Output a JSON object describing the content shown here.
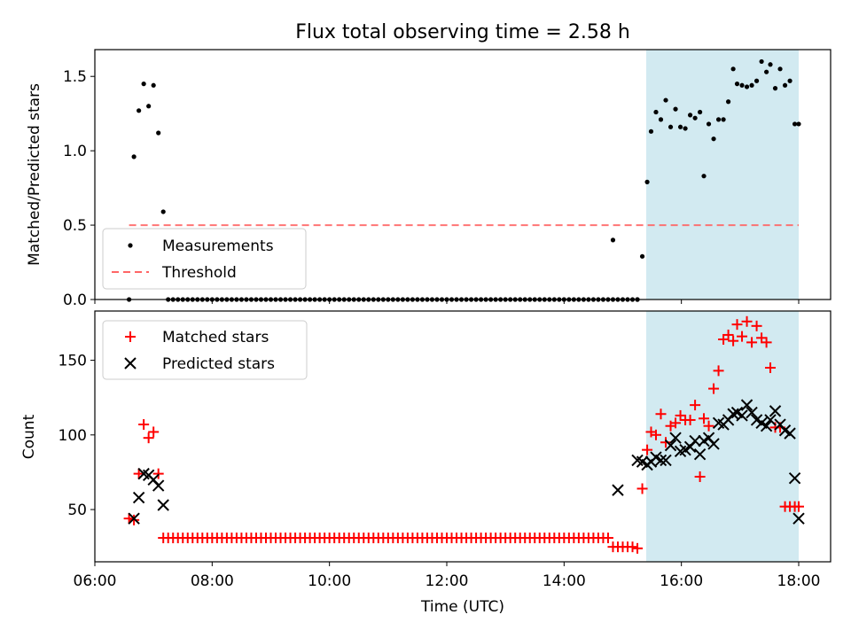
{
  "chart_data": [
    {
      "type": "scatter",
      "title": "Flux total observing time = 2.58 h",
      "ylabel": "Matched/Predicted stars",
      "xlabel": "",
      "xlim": [
        "06:00",
        "18:00"
      ],
      "ylim": [
        0,
        1.68
      ],
      "yticks": [
        "0.0",
        "0.5",
        "1.0",
        "1.5"
      ],
      "highlight_span": {
        "x": [
          "15:24",
          "18:00"
        ],
        "color": "#add8e6"
      },
      "threshold": {
        "name": "Threshold",
        "y": 0.5,
        "x": [
          "06:35",
          "18:00"
        ],
        "color": "#ff6666"
      },
      "series": [
        {
          "name": "Measurements",
          "color": "#000000",
          "marker": "dot",
          "x": [
            "06:35",
            "06:40",
            "06:45",
            "06:50",
            "06:55",
            "07:00",
            "07:05",
            "07:10",
            "15:15",
            "15:20",
            "15:25",
            "15:29",
            "15:34",
            "15:39",
            "15:44",
            "15:49",
            "15:54",
            "15:59",
            "16:04",
            "16:09",
            "16:14",
            "16:19",
            "16:23",
            "16:28",
            "16:33",
            "16:38",
            "16:43",
            "16:48",
            "16:53",
            "16:57",
            "17:02",
            "17:07",
            "17:12",
            "17:17",
            "17:22",
            "17:27",
            "17:31",
            "17:36",
            "17:41",
            "17:46",
            "17:51",
            "17:56",
            "18:00"
          ],
          "y": [
            0.0,
            0.96,
            1.27,
            1.45,
            1.3,
            1.44,
            1.12,
            0.59,
            0.0,
            0.29,
            0.79,
            1.13,
            1.26,
            1.21,
            1.34,
            1.16,
            1.28,
            1.16,
            1.15,
            1.24,
            1.22,
            1.26,
            0.83,
            1.18,
            1.08,
            1.21,
            1.21,
            1.33,
            1.55,
            1.45,
            1.44,
            1.43,
            1.44,
            1.47,
            1.6,
            1.53,
            1.58,
            1.42,
            1.55,
            1.44,
            1.47,
            1.18,
            1.18
          ]
        }
      ],
      "zero_run": {
        "x": [
          "07:15",
          "15:15"
        ],
        "step_min": 5,
        "y": 0.0
      },
      "extra_points": [
        {
          "x": "14:50",
          "y": 0.4
        }
      ],
      "legend": {
        "position": "lower-left",
        "entries": [
          "Measurements",
          "Threshold"
        ]
      }
    },
    {
      "type": "scatter",
      "title": "",
      "xlabel": "Time (UTC)",
      "ylabel": "Count",
      "xlim": [
        "06:00",
        "18:00"
      ],
      "xticks": [
        "06:00",
        "08:00",
        "10:00",
        "12:00",
        "14:00",
        "16:00",
        "18:00"
      ],
      "ylim": [
        15,
        183
      ],
      "yticks": [
        "50",
        "100",
        "150"
      ],
      "highlight_span": {
        "x": [
          "15:24",
          "18:00"
        ],
        "color": "#add8e6"
      },
      "series": [
        {
          "name": "Matched stars",
          "color": "#ff0000",
          "marker": "plus",
          "x": [
            "06:35",
            "06:40",
            "06:45",
            "06:50",
            "06:55",
            "07:00",
            "07:05",
            "14:50",
            "14:55",
            "15:00",
            "15:05",
            "15:10",
            "15:15",
            "15:20",
            "15:25",
            "15:29",
            "15:34",
            "15:39",
            "15:44",
            "15:49",
            "15:54",
            "15:59",
            "16:04",
            "16:09",
            "16:14",
            "16:19",
            "16:23",
            "16:28",
            "16:33",
            "16:38",
            "16:43",
            "16:48",
            "16:53",
            "16:57",
            "17:02",
            "17:07",
            "17:12",
            "17:17",
            "17:22",
            "17:27",
            "17:31",
            "17:36",
            "17:41",
            "17:46",
            "17:51",
            "17:56",
            "18:00"
          ],
          "y": [
            44,
            43,
            74,
            107,
            98,
            102,
            74,
            25,
            25,
            25,
            25,
            25,
            24,
            64,
            90,
            102,
            100,
            114,
            95,
            106,
            108,
            113,
            110,
            110,
            120,
            72,
            111,
            106,
            131,
            143,
            164,
            167,
            163,
            174,
            166,
            176,
            162,
            173,
            165,
            162,
            145,
            105,
            105,
            52,
            52,
            52,
            52
          ]
        },
        {
          "name": "Predicted stars",
          "color": "#000000",
          "marker": "x",
          "x": [
            "06:40",
            "06:45",
            "06:50",
            "06:55",
            "07:00",
            "07:05",
            "07:10",
            "14:55",
            "15:15",
            "15:20",
            "15:25",
            "15:29",
            "15:34",
            "15:39",
            "15:44",
            "15:49",
            "15:54",
            "15:59",
            "16:04",
            "16:09",
            "16:14",
            "16:19",
            "16:23",
            "16:28",
            "16:33",
            "16:38",
            "16:43",
            "16:48",
            "16:53",
            "16:57",
            "17:02",
            "17:07",
            "17:12",
            "17:17",
            "17:22",
            "17:27",
            "17:31",
            "17:36",
            "17:41",
            "17:46",
            "17:51",
            "17:56",
            "18:00"
          ],
          "y": [
            44,
            58,
            74,
            73,
            70,
            66,
            53,
            63,
            83,
            82,
            80,
            82,
            85,
            83,
            83,
            93,
            98,
            89,
            90,
            92,
            96,
            87,
            96,
            98,
            94,
            108,
            107,
            110,
            114,
            115,
            113,
            120,
            115,
            110,
            108,
            106,
            110,
            116,
            107,
            103,
            101,
            71,
            44
          ]
        }
      ],
      "flat_run": {
        "x": [
          "07:10",
          "14:45"
        ],
        "step_min": 5,
        "y": 31,
        "series": "Matched stars"
      },
      "legend": {
        "position": "upper-left",
        "entries": [
          "Matched stars",
          "Predicted stars"
        ]
      }
    }
  ]
}
